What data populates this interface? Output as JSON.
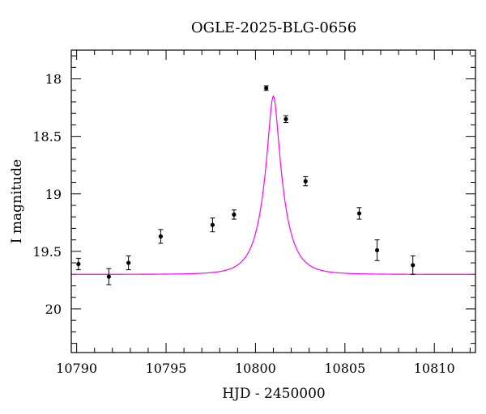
{
  "chart_data": {
    "type": "scatter",
    "title": "OGLE-2025-BLG-0656",
    "xlabel": "HJD - 2450000",
    "ylabel": "I magnitude",
    "xlim": [
      10789.7,
      10812.3
    ],
    "ylim": [
      20.38,
      17.75
    ],
    "y_inverted": true,
    "grid": false,
    "x_ticks": [
      10790,
      10795,
      10800,
      10805,
      10810
    ],
    "x_tick_labels": [
      "10790",
      "10795",
      "10800",
      "10805",
      "10810"
    ],
    "y_ticks": [
      18,
      18.5,
      19,
      19.5,
      20
    ],
    "y_tick_labels": [
      "18",
      "18.5",
      "19",
      "19.5",
      "20"
    ],
    "series": [
      {
        "type": "scatter",
        "color": "#000000",
        "points": [
          {
            "x": 10790.1,
            "y": 19.61,
            "err": 0.05
          },
          {
            "x": 10791.8,
            "y": 19.72,
            "err": 0.07
          },
          {
            "x": 10792.9,
            "y": 19.6,
            "err": 0.06
          },
          {
            "x": 10794.7,
            "y": 19.37,
            "err": 0.06
          },
          {
            "x": 10797.6,
            "y": 19.27,
            "err": 0.06
          },
          {
            "x": 10798.8,
            "y": 19.18,
            "err": 0.04
          },
          {
            "x": 10800.6,
            "y": 18.08,
            "err": 0.02
          },
          {
            "x": 10801.7,
            "y": 18.35,
            "err": 0.03
          },
          {
            "x": 10802.8,
            "y": 18.89,
            "err": 0.04
          },
          {
            "x": 10805.8,
            "y": 19.17,
            "err": 0.05
          },
          {
            "x": 10806.8,
            "y": 19.49,
            "err": 0.09
          },
          {
            "x": 10808.8,
            "y": 19.62,
            "err": 0.08
          }
        ]
      },
      {
        "type": "line",
        "color": "#ff00ff",
        "model": {
          "t0": 10801.0,
          "tE": 1.1,
          "u0": 0.245,
          "base_mag": 19.7,
          "blend_fraction": 1.0
        }
      }
    ]
  }
}
